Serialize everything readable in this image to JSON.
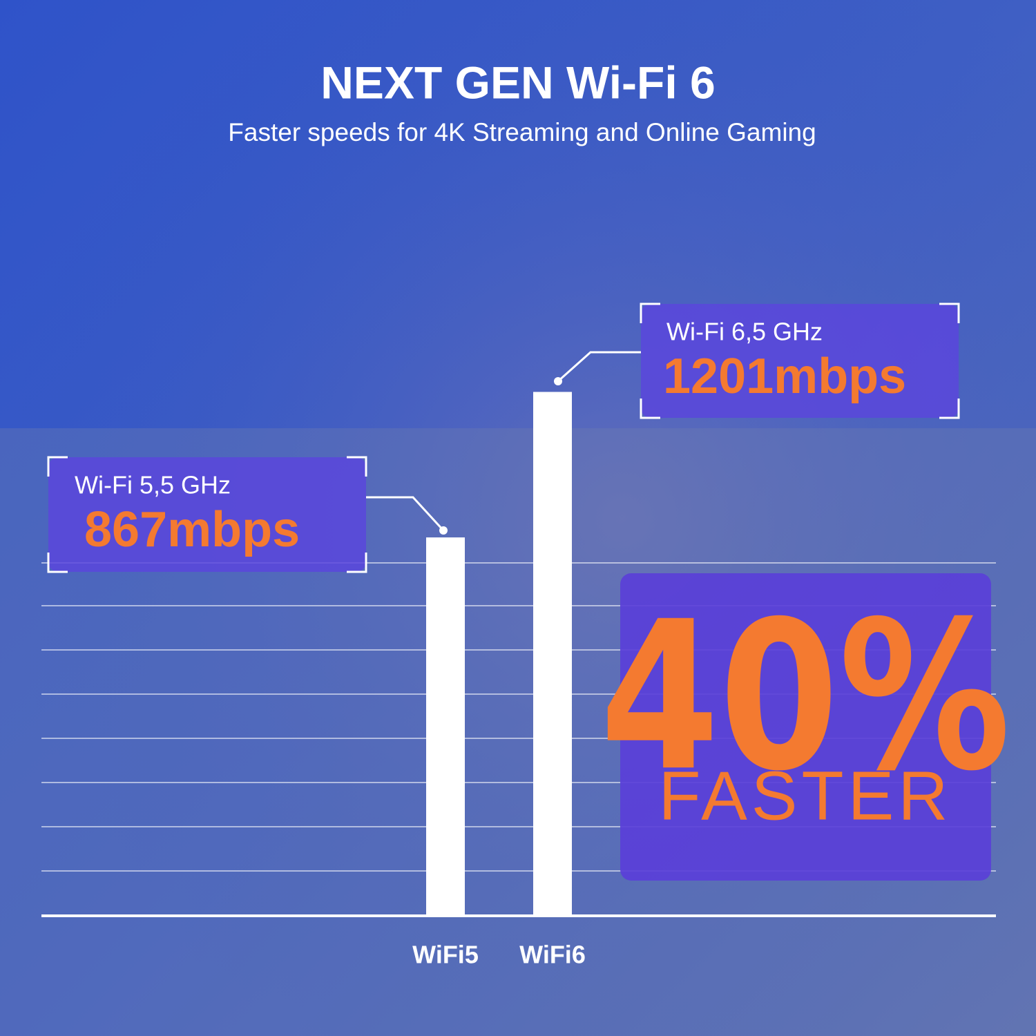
{
  "chart_data": {
    "type": "bar",
    "title": "NEXT GEN Wi-Fi 6",
    "subtitle": "Faster speeds for 4K Streaming and Online Gaming",
    "categories": [
      "WiFi5",
      "WiFi6"
    ],
    "values": [
      867,
      1201
    ],
    "value_labels": [
      "867mbps",
      "1201mbps"
    ],
    "bar_labels": [
      "Wi-Fi 5,5 GHz",
      "Wi-Fi 6,5 GHz"
    ],
    "color": "#ffffff",
    "ylim": [
      0,
      1300
    ],
    "annotations": [
      "40%",
      "FASTER"
    ]
  }
}
